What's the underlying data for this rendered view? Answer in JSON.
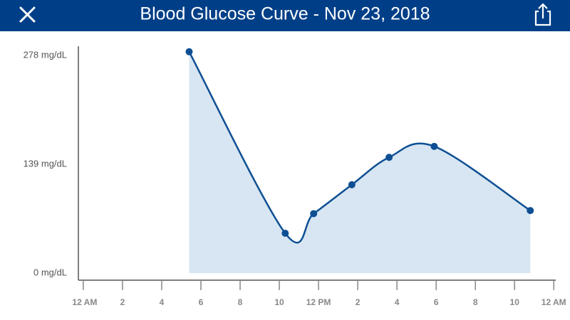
{
  "chart_data": {
    "type": "area",
    "title": "Blood Glucose Curve - Nov 23, 2018",
    "x": [
      5.4,
      10.3,
      11.75,
      13.7,
      15.6,
      17.9,
      22.8
    ],
    "values": [
      283,
      51,
      76,
      113,
      148,
      162,
      80
    ],
    "color": "#0e4f93",
    "fill": "#d7e6f2",
    "xlim": [
      -0.25,
      24.1
    ],
    "xticks": [
      {
        "value": 0,
        "label": "12 AM"
      },
      2,
      4,
      6,
      8,
      10,
      {
        "value": 12,
        "label": "12 PM"
      },
      2,
      4,
      6,
      8,
      10,
      {
        "value": 24,
        "label": "12 AM"
      }
    ],
    "ylim": [
      -9,
      290
    ],
    "yticks": [
      {
        "value": 0,
        "label": "0 mg/dL"
      },
      {
        "value": 139,
        "label": "139 mg/dL"
      },
      {
        "value": 278,
        "label": "278 mg/dL"
      }
    ]
  }
}
